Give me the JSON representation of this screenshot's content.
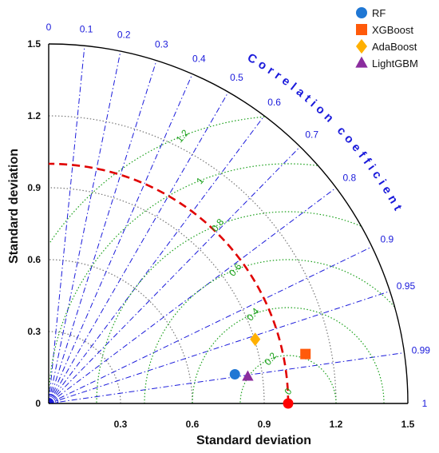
{
  "chart_data": {
    "type": "scatter",
    "subtype": "taylor-diagram",
    "xlabel": "Standard deviation",
    "ylabel": "Standard deviation",
    "correlation_title": "Correlation coefficient",
    "std_ticks": [
      0,
      0.3,
      0.6,
      0.9,
      1.2,
      1.5
    ],
    "std_tick_labels_x": [
      "0.3",
      "0.6",
      "0.9",
      "1.2",
      "1.5"
    ],
    "std_tick_labels_y": [
      "0",
      "0.3",
      "0.6",
      "0.9",
      "1.2",
      "1.5"
    ],
    "std_max": 1.5,
    "correlation_ticks": [
      0,
      0.1,
      0.2,
      0.3,
      0.4,
      0.5,
      0.6,
      0.7,
      0.8,
      0.9,
      0.95,
      0.99,
      1
    ],
    "correlation_tick_labels": [
      "0",
      "0.1",
      "0.2",
      "0.3",
      "0.4",
      "0.5",
      "0.6",
      "0.7",
      "0.8",
      "0.9",
      "0.95",
      "0.99",
      "1"
    ],
    "rms_contours": [
      0.2,
      0.4,
      0.6,
      0.8,
      1,
      1.2
    ],
    "rms_labels": [
      "0",
      "0.2",
      "0.4",
      "0.6",
      "0.8",
      "1",
      "1.2"
    ],
    "reference": {
      "std": 1.0,
      "correlation": 1.0,
      "color": "#ff0000"
    },
    "reference_arc_std": 1.0,
    "series": [
      {
        "name": "RF",
        "marker": "circle",
        "color": "#1f77d4",
        "std": 0.787,
        "correlation": 0.988
      },
      {
        "name": "XGBoost",
        "marker": "square",
        "color": "#ff5a0a",
        "std": 1.092,
        "correlation": 0.982
      },
      {
        "name": "AdaBoost",
        "marker": "diamond",
        "color": "#ffb000",
        "std": 0.903,
        "correlation": 0.955
      },
      {
        "name": "LightGBM",
        "marker": "triangle",
        "color": "#8b2d9e",
        "std": 0.839,
        "correlation": 0.991
      }
    ],
    "legend_position": "top-right",
    "colors": {
      "correlation_lines": "#1a1adb",
      "std_arcs": "#777777",
      "rms_contours": "#1aa01a",
      "reference_arc": "#e00000"
    }
  }
}
